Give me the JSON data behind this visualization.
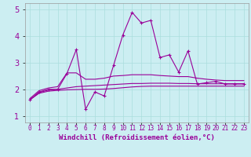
{
  "xlabel": "Windchill (Refroidissement éolien,°C)",
  "x_hours": [
    0,
    1,
    2,
    3,
    4,
    5,
    6,
    7,
    8,
    9,
    10,
    11,
    12,
    13,
    14,
    15,
    16,
    17,
    18,
    19,
    20,
    21,
    22,
    23
  ],
  "line_main": [
    1.6,
    1.9,
    2.0,
    2.0,
    2.6,
    3.5,
    1.25,
    1.9,
    1.75,
    2.9,
    4.05,
    4.9,
    4.5,
    4.6,
    3.2,
    3.3,
    2.65,
    3.45,
    2.2,
    2.25,
    2.3,
    2.2,
    2.2,
    2.2
  ],
  "line_upper": [
    1.65,
    1.95,
    2.05,
    2.1,
    2.62,
    2.62,
    2.38,
    2.38,
    2.42,
    2.5,
    2.52,
    2.55,
    2.55,
    2.55,
    2.52,
    2.5,
    2.48,
    2.48,
    2.42,
    2.38,
    2.35,
    2.33,
    2.33,
    2.33
  ],
  "line_mid": [
    1.6,
    1.88,
    1.97,
    2.0,
    2.05,
    2.1,
    2.12,
    2.14,
    2.16,
    2.18,
    2.2,
    2.22,
    2.22,
    2.23,
    2.23,
    2.23,
    2.22,
    2.22,
    2.21,
    2.21,
    2.21,
    2.21,
    2.21,
    2.21
  ],
  "line_lower": [
    1.6,
    1.85,
    1.93,
    1.96,
    1.98,
    1.99,
    2.0,
    2.0,
    2.01,
    2.03,
    2.06,
    2.09,
    2.11,
    2.12,
    2.12,
    2.12,
    2.12,
    2.12,
    2.12,
    2.12,
    2.12,
    2.12,
    2.12,
    2.12
  ],
  "color": "#990099",
  "bg_color": "#cceef2",
  "grid_color": "#aadddd",
  "ylim": [
    0.75,
    5.25
  ],
  "yticks": [
    1,
    2,
    3,
    4,
    5
  ],
  "xlabel_fontsize": 6.5,
  "tick_fontsize": 5.5,
  "ytick_fontsize": 7.0
}
